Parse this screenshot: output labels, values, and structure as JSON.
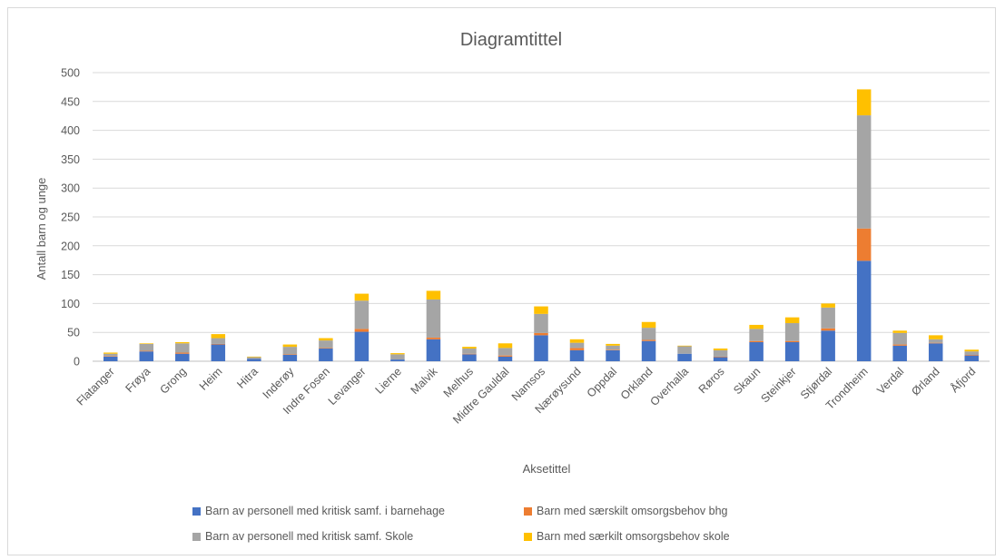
{
  "chart_data": {
    "type": "bar",
    "stacked": true,
    "title": "Diagramtittel",
    "xlabel": "Aksetittel",
    "ylabel": "Antall barn og unge",
    "ylim": [
      0,
      500
    ],
    "yticks": [
      0,
      50,
      100,
      150,
      200,
      250,
      300,
      350,
      400,
      450,
      500
    ],
    "grid": true,
    "legend_position": "bottom",
    "categories": [
      "Flatanger",
      "Frøya",
      "Grong",
      "Heim",
      "Hitra",
      "Inderøy",
      "Indre Fosen",
      "Levanger",
      "Lierne",
      "Malvik",
      "Melhus",
      "Midtre Gauldal",
      "Namsos",
      "Nærøysund",
      "Oppdal",
      "Orkland",
      "Overhalla",
      "Røros",
      "Skaun",
      "Steinkjer",
      "Stjørdal",
      "Trondheim",
      "Verdal",
      "Ørland",
      "Åfjord"
    ],
    "series": [
      {
        "name": "Barn av personell med kritisk samf. i barnehage",
        "color": "#4472C4",
        "values": [
          8,
          17,
          13,
          29,
          4,
          11,
          22,
          51,
          3,
          38,
          12,
          8,
          45,
          19,
          19,
          35,
          13,
          7,
          33,
          33,
          53,
          174,
          27,
          31,
          10
        ]
      },
      {
        "name": "Barn med særskilt omsorgsbehov bhg",
        "color": "#ED7D31",
        "values": [
          1,
          1,
          2,
          1,
          0,
          1,
          1,
          5,
          0,
          3,
          1,
          2,
          4,
          4,
          1,
          2,
          0,
          1,
          2,
          2,
          4,
          56,
          2,
          1,
          1
        ]
      },
      {
        "name": "Barn av personell med kritisk samf. Skole",
        "color": "#A5A5A5",
        "values": [
          4,
          12,
          16,
          10,
          3,
          13,
          13,
          49,
          9,
          66,
          9,
          13,
          33,
          9,
          7,
          21,
          13,
          11,
          21,
          31,
          36,
          196,
          20,
          6,
          6
        ]
      },
      {
        "name": "Barn med særkilt omsorgsbehov skole",
        "color": "#FFC000",
        "values": [
          2,
          1,
          2,
          7,
          1,
          4,
          4,
          12,
          2,
          15,
          3,
          8,
          13,
          6,
          3,
          10,
          1,
          3,
          7,
          10,
          7,
          45,
          4,
          7,
          3
        ]
      }
    ]
  }
}
